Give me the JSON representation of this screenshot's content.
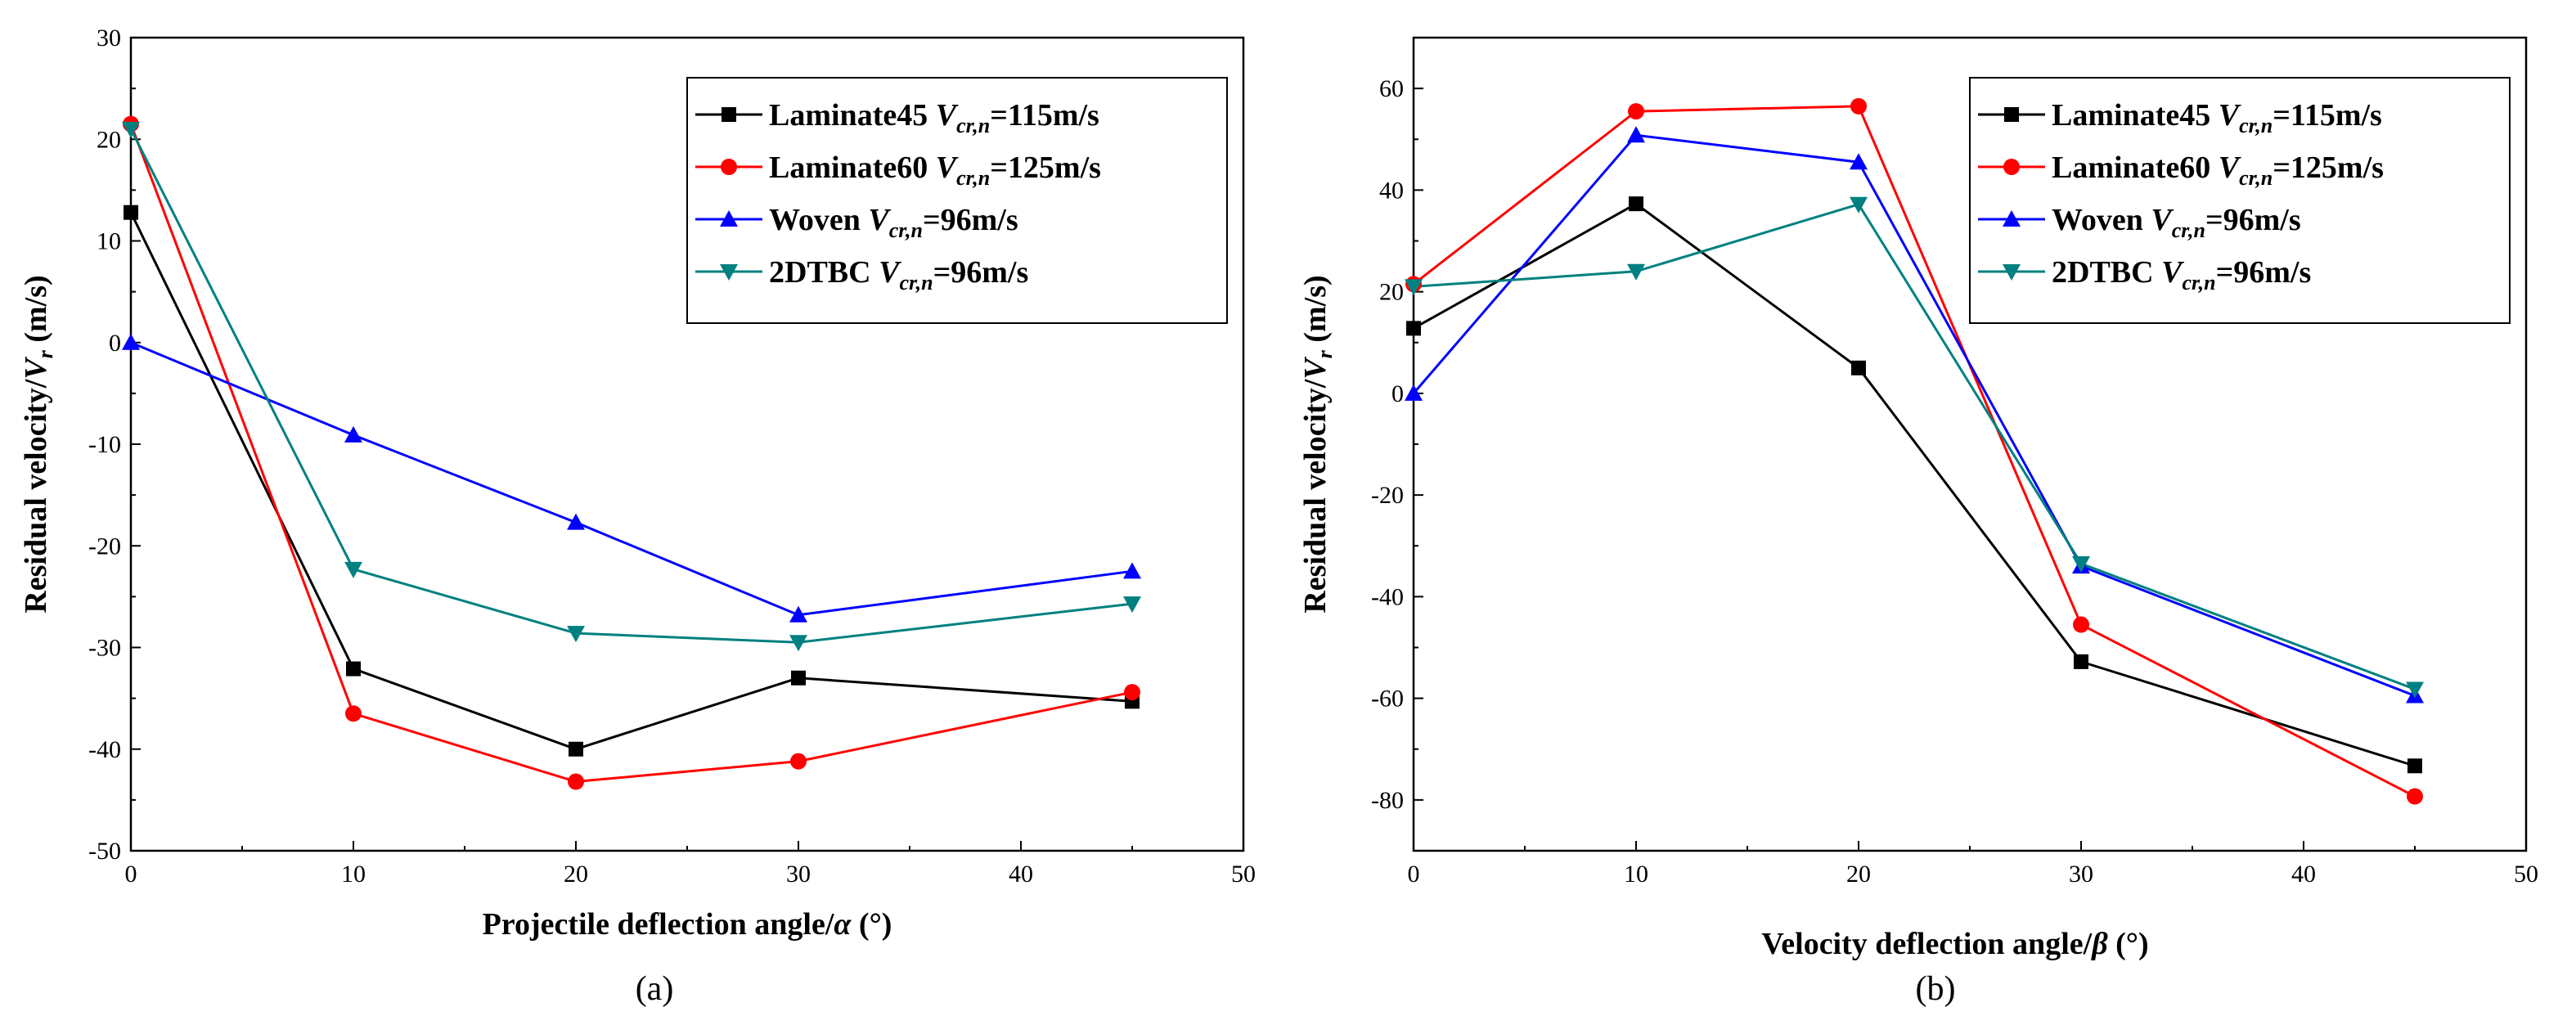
{
  "chart_data": [
    {
      "type": "line",
      "caption": "(a)",
      "title": "",
      "xlabel": "Projectile deflection angle/",
      "xlabel_symbol": "α",
      "xlabel_unit": " (°)",
      "ylabel": "Residual velocity/",
      "ylabel_symbol": "V",
      "ylabel_sub": "r",
      "ylabel_unit": " (m/s)",
      "xlim": [
        0,
        50
      ],
      "ylim": [
        -50,
        30
      ],
      "xticks": [
        "0",
        "10",
        "20",
        "30",
        "40",
        "50"
      ],
      "yticks": [
        "-50",
        "-40",
        "-30",
        "-20",
        "-10",
        "0",
        "10",
        "20",
        "30"
      ],
      "legend_position": "top-right",
      "x": [
        0,
        10,
        20,
        30,
        45
      ],
      "series": [
        {
          "name": "Laminate45",
          "vsym": "V",
          "vsub": "cr,n",
          "vval": "=115m/s",
          "color": "#000000",
          "marker": "square",
          "values": [
            12.8,
            -32.1,
            -40.0,
            -33.0,
            -35.3
          ]
        },
        {
          "name": "Laminate60",
          "vsym": "V",
          "vsub": "cr,n",
          "vval": "=125m/s",
          "color": "#ff0000",
          "marker": "circle",
          "values": [
            21.5,
            -36.5,
            -43.2,
            -41.2,
            -34.4
          ]
        },
        {
          "name": "Woven",
          "vsym": "V",
          "vsub": "cr,n",
          "vval": "=96m/s",
          "color": "#0000ff",
          "marker": "triangle-up",
          "values": [
            0.0,
            -9.1,
            -17.7,
            -26.8,
            -22.5
          ]
        },
        {
          "name": "2DTBC",
          "vsym": "V",
          "vsub": "cr,n",
          "vval": "=96m/s",
          "color": "#008080",
          "marker": "triangle-down",
          "values": [
            21.0,
            -22.3,
            -28.6,
            -29.5,
            -25.7
          ]
        }
      ]
    },
    {
      "type": "line",
      "caption": "(b)",
      "title": "",
      "xlabel": "Velocity deflection angle/",
      "xlabel_symbol": "β",
      "xlabel_unit": " (°)",
      "ylabel": "Residual velocity/",
      "ylabel_symbol": "V",
      "ylabel_sub": "r",
      "ylabel_unit": " (m/s)",
      "xlim": [
        0,
        50
      ],
      "ylim": [
        -90,
        70
      ],
      "xticks": [
        "0",
        "10",
        "20",
        "30",
        "40",
        "50"
      ],
      "yticks": [
        "-80",
        "-60",
        "-40",
        "-20",
        "0",
        "20",
        "40",
        "60"
      ],
      "ytick_values": [
        -80,
        -60,
        -40,
        -20,
        0,
        20,
        40,
        60
      ],
      "legend_position": "top-right",
      "x": [
        0,
        10,
        20,
        30,
        45
      ],
      "series": [
        {
          "name": "Laminate45",
          "vsym": "V",
          "vsub": "cr,n",
          "vval": "=115m/s",
          "color": "#000000",
          "marker": "square",
          "values": [
            12.8,
            37.3,
            5.0,
            -52.8,
            -73.3
          ]
        },
        {
          "name": "Laminate60",
          "vsym": "V",
          "vsub": "cr,n",
          "vval": "=125m/s",
          "color": "#ff0000",
          "marker": "circle",
          "values": [
            21.5,
            55.5,
            56.5,
            -45.5,
            -79.3
          ]
        },
        {
          "name": "Woven",
          "vsym": "V",
          "vsub": "cr,n",
          "vval": "=96m/s",
          "color": "#0000ff",
          "marker": "triangle-up",
          "values": [
            0.0,
            50.8,
            45.5,
            -34.0,
            -59.5
          ]
        },
        {
          "name": "2DTBC",
          "vsym": "V",
          "vsub": "cr,n",
          "vval": "=96m/s",
          "color": "#008080",
          "marker": "triangle-down",
          "values": [
            21.0,
            24.0,
            37.2,
            -33.5,
            -58.2
          ]
        }
      ]
    }
  ]
}
